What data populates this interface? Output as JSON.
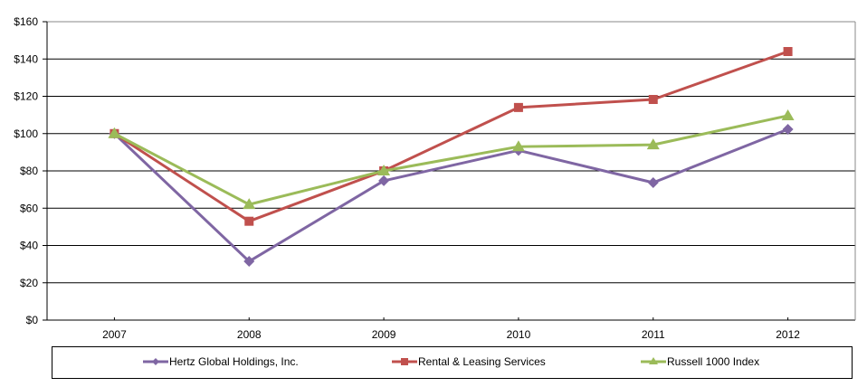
{
  "chart_data": {
    "type": "line",
    "title": "",
    "xlabel": "",
    "ylabel": "",
    "categories": [
      "2007",
      "2008",
      "2009",
      "2010",
      "2011",
      "2012"
    ],
    "ylim": [
      0,
      160
    ],
    "yticks": [
      0,
      20,
      40,
      60,
      80,
      100,
      120,
      140,
      160
    ],
    "ytick_labels": [
      "$0",
      "$20",
      "$40",
      "$60",
      "$80",
      "$100",
      "$120",
      "$140",
      "$160"
    ],
    "grid": true,
    "legend_position": "bottom",
    "series": [
      {
        "name": "Hertz Global Holdings, Inc.",
        "color": "#7F66A3",
        "marker": "diamond",
        "values": [
          100,
          31.5,
          74.7,
          91,
          73.7,
          102.3
        ]
      },
      {
        "name": "Rental & Leasing Services",
        "color": "#C0504D",
        "marker": "square",
        "values": [
          100,
          53,
          80,
          114,
          118.3,
          144
        ]
      },
      {
        "name": "Russell 1000 Index",
        "color": "#9BBB59",
        "marker": "triangle",
        "values": [
          100,
          62,
          80,
          93,
          94,
          109.6
        ]
      }
    ]
  }
}
